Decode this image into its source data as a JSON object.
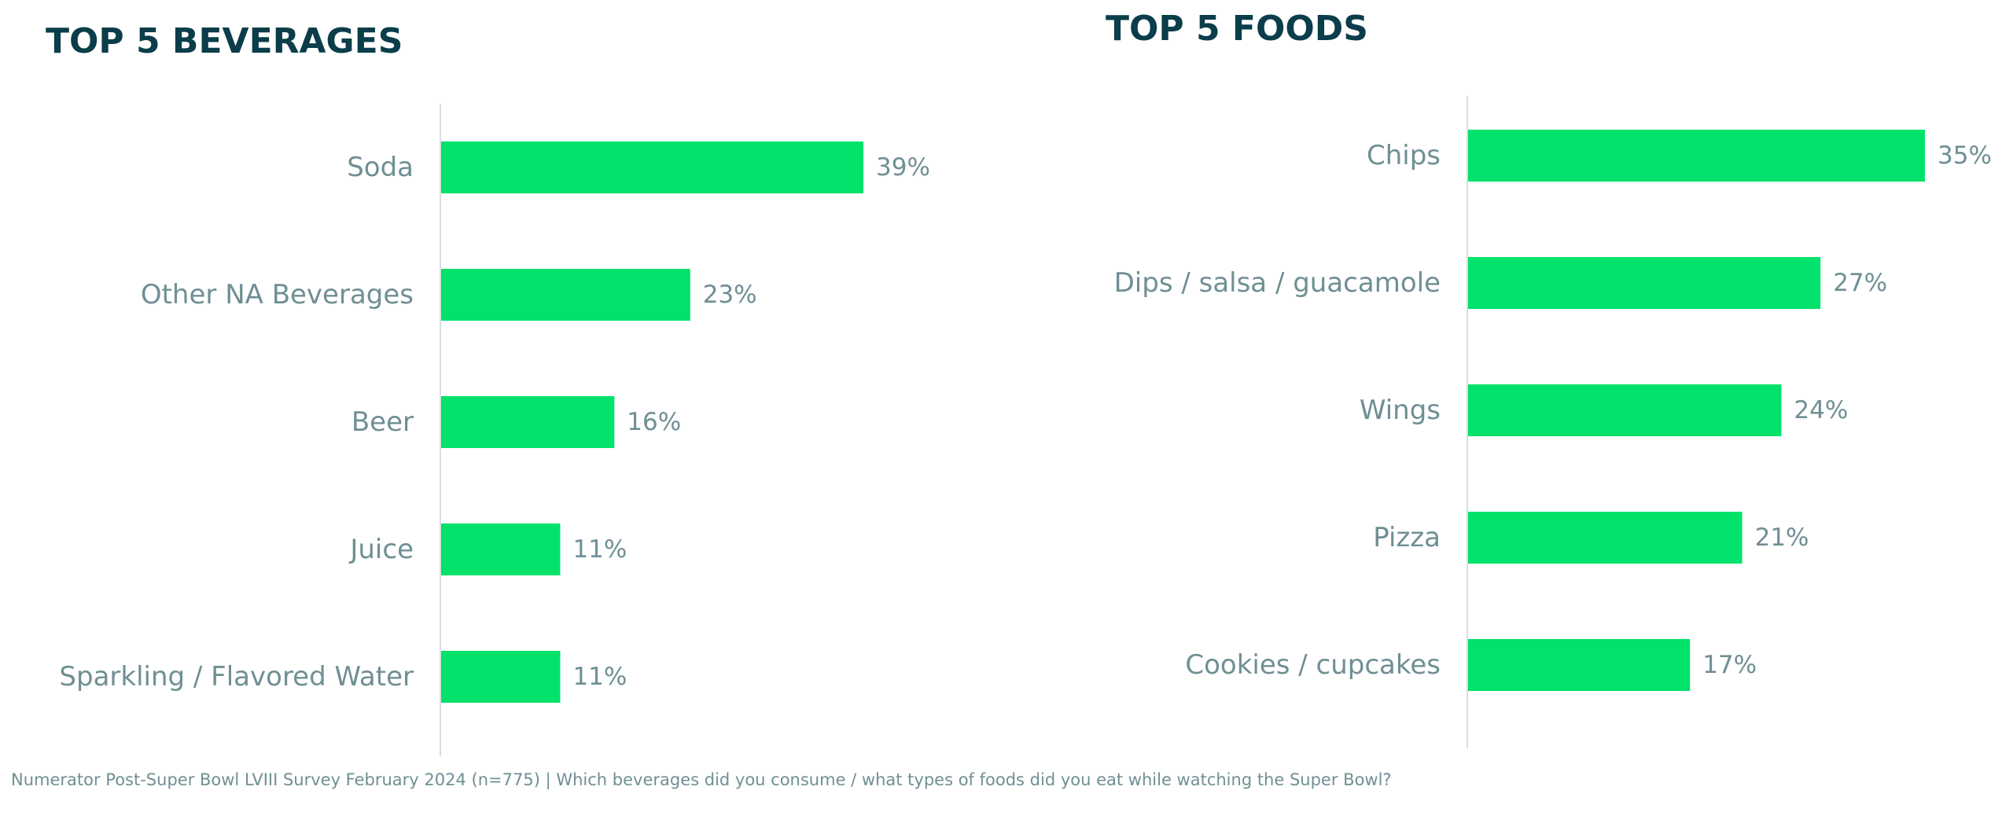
{
  "footnote": "Numerator Post-Super Bowl LVIII Survey February 2024 (n=775) | Which beverages did you consume / what types of foods did you eat while watching the Super Bowl?",
  "colors": {
    "bar": "#02e16a",
    "title": "#0b3d4a",
    "label": "#6f8f94",
    "axis": "#d9dfe1"
  },
  "chart_data": [
    {
      "type": "bar",
      "orientation": "horizontal",
      "title": "TOP 5 BEVERAGES",
      "categories": [
        "Soda",
        "Other NA Beverages",
        "Beer",
        "Juice",
        "Sparkling / Flavored Water"
      ],
      "values": [
        39,
        23,
        16,
        11,
        11
      ],
      "value_labels": [
        "39%",
        "23%",
        "16%",
        "11%",
        "11%"
      ],
      "unit": "%",
      "xlim": [
        0,
        39
      ],
      "grid": false,
      "legend": "none"
    },
    {
      "type": "bar",
      "orientation": "horizontal",
      "title": "TOP 5 FOODS",
      "categories": [
        "Chips",
        "Dips / salsa / guacamole",
        "Wings",
        "Pizza",
        "Cookies / cupcakes"
      ],
      "values": [
        35,
        27,
        24,
        21,
        17
      ],
      "value_labels": [
        "35%",
        "27%",
        "24%",
        "21%",
        "17%"
      ],
      "unit": "%",
      "xlim": [
        0,
        35
      ],
      "grid": false,
      "legend": "none"
    }
  ]
}
